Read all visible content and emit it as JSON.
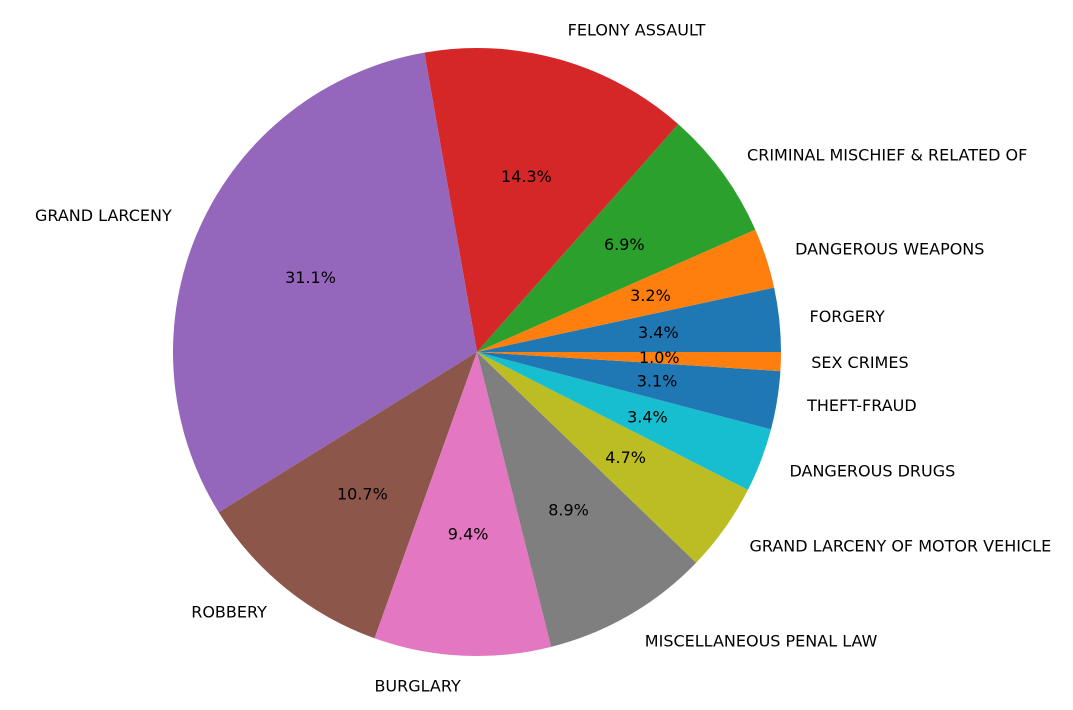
{
  "chart_data": {
    "type": "pie",
    "title": "",
    "start_angle_deg": 0,
    "direction": "counterclockwise",
    "slices": [
      {
        "label": "FORGERY",
        "value": 3.4,
        "pct_label": "3.4%",
        "color": "#1f77b4"
      },
      {
        "label": "DANGEROUS WEAPONS",
        "value": 3.2,
        "pct_label": "3.2%",
        "color": "#ff7f0e"
      },
      {
        "label": "CRIMINAL MISCHIEF & RELATED OF",
        "value": 6.9,
        "pct_label": "6.9%",
        "color": "#2ca02c"
      },
      {
        "label": "FELONY ASSAULT",
        "value": 14.3,
        "pct_label": "14.3%",
        "color": "#d62728"
      },
      {
        "label": "GRAND LARCENY",
        "value": 31.1,
        "pct_label": "31.1%",
        "color": "#9467bd"
      },
      {
        "label": "ROBBERY",
        "value": 10.7,
        "pct_label": "10.7%",
        "color": "#8c564b"
      },
      {
        "label": "BURGLARY",
        "value": 9.4,
        "pct_label": "9.4%",
        "color": "#e377c2"
      },
      {
        "label": "MISCELLANEOUS PENAL LAW",
        "value": 8.9,
        "pct_label": "8.9%",
        "color": "#7f7f7f"
      },
      {
        "label": "GRAND LARCENY OF MOTOR VEHICLE",
        "value": 4.7,
        "pct_label": "4.7%",
        "color": "#bcbd22"
      },
      {
        "label": "DANGEROUS DRUGS",
        "value": 3.4,
        "pct_label": "3.4%",
        "color": "#17becf"
      },
      {
        "label": "THEFT-FRAUD",
        "value": 3.1,
        "pct_label": "3.1%",
        "color": "#1f77b4"
      },
      {
        "label": "SEX CRIMES",
        "value": 1.0,
        "pct_label": "1.0%",
        "color": "#ff7f0e"
      }
    ]
  }
}
